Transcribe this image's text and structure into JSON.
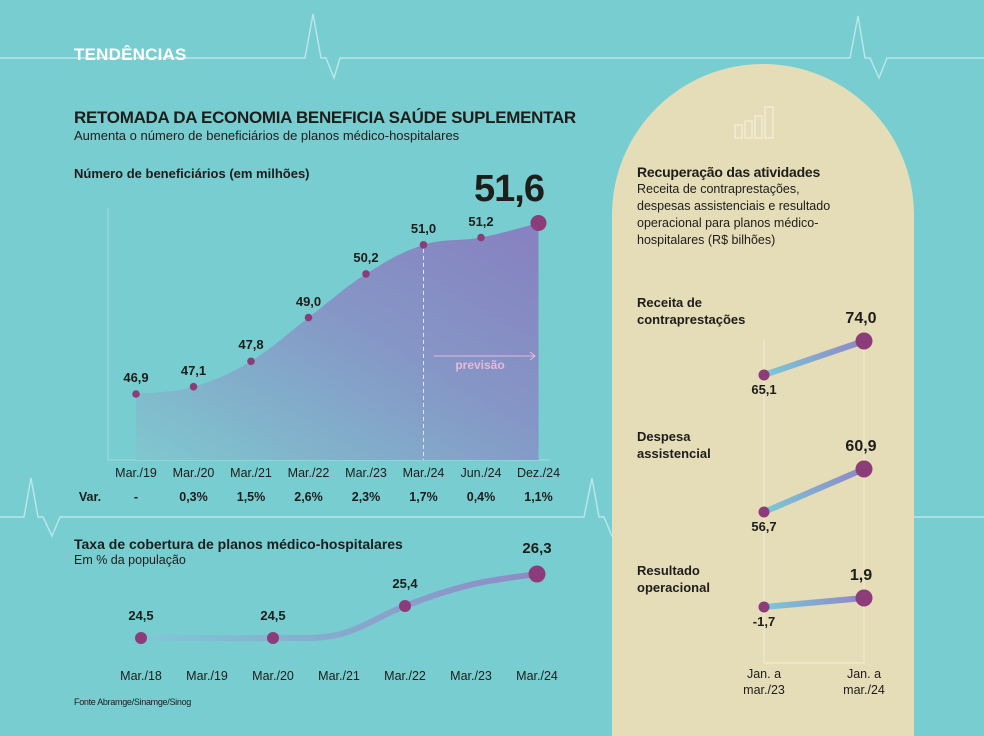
{
  "header": {
    "kicker": "TENDÊNCIAS",
    "title": "RETOMADA DA ECONOMIA BENEFICIA SAÚDE SUPLEMENTAR",
    "subtitle": "Aumenta o número de beneficiários de planos médico-hospitalares"
  },
  "colors": {
    "background": "#78cdd1",
    "panel": "#e5dcb8",
    "point": "#8c3d79",
    "area_start": "#7fc6cf",
    "area_end": "#8780c0",
    "line_start": "#77c6d8",
    "line_end": "#8f86c6",
    "ecg_line": "#b9e6e8"
  },
  "chart_data": [
    {
      "id": "beneficiarios",
      "type": "area",
      "title": "Número de beneficiários (em milhões)",
      "categories": [
        "Mar./19",
        "Mar./20",
        "Mar./21",
        "Mar./22",
        "Mar./23",
        "Mar./24",
        "Jun./24",
        "Dez./24"
      ],
      "values": [
        46.9,
        47.1,
        47.8,
        49.0,
        50.2,
        51.0,
        51.2,
        51.6
      ],
      "value_labels": [
        "46,9",
        "47,1",
        "47,8",
        "49,0",
        "50,2",
        "51,0",
        "51,2",
        "51,6"
      ],
      "highlight_label": "51,6",
      "forecast_from": "Mar./24",
      "forecast_label": "previsão",
      "variation_label": "Var.",
      "variation": [
        "-",
        "0,3%",
        "1,5%",
        "2,6%",
        "2,3%",
        "1,7%",
        "0,4%",
        "1,1%"
      ],
      "ylim": [
        46,
        52
      ],
      "xlabel": "",
      "ylabel": ""
    },
    {
      "id": "cobertura",
      "type": "line",
      "title": "Taxa de cobertura de planos médico-hospitalares",
      "subtitle": "Em % da população",
      "categories": [
        "Mar./18",
        "Mar./19",
        "Mar./20",
        "Mar./21",
        "Mar./22",
        "Mar./23",
        "Mar./24"
      ],
      "values": [
        24.5,
        24.5,
        24.5,
        24.6,
        25.4,
        26.0,
        26.3
      ],
      "labeled_points": [
        {
          "category": "Mar./18",
          "label": "24,5"
        },
        {
          "category": "Mar./20",
          "label": "24,5"
        },
        {
          "category": "Mar./22",
          "label": "25,4"
        },
        {
          "category": "Mar./24",
          "label": "26,3"
        }
      ],
      "ylim": [
        24,
        27
      ]
    },
    {
      "id": "recuperacao",
      "type": "line",
      "title": "Recuperação das atividades",
      "subtitle": "Receita de contraprestações, despesas assistenciais e resultado operacional para planos médico-hospitalares (R$ bilhões)",
      "categories": [
        "Jan. a mar./23",
        "Jan. a mar./24"
      ],
      "category_lines": [
        [
          "Jan. a",
          "mar./23"
        ],
        [
          "Jan. a",
          "mar./24"
        ]
      ],
      "series": [
        {
          "name": "Receita de contraprestações",
          "name_lines": [
            "Receita de",
            "contraprestações"
          ],
          "values": [
            65.1,
            74.0
          ],
          "labels": [
            "65,1",
            "74,0"
          ]
        },
        {
          "name": "Despesa assistencial",
          "name_lines": [
            "Despesa",
            "assistencial"
          ],
          "values": [
            56.7,
            60.9
          ],
          "labels": [
            "56,7",
            "60,9"
          ]
        },
        {
          "name": "Resultado operacional",
          "name_lines": [
            "Resultado",
            "operacional"
          ],
          "values": [
            -1.7,
            1.9
          ],
          "labels": [
            "-1,7",
            "1,9"
          ]
        }
      ]
    }
  ],
  "source": "Fonte Abramge/Sinamge/Sinog"
}
